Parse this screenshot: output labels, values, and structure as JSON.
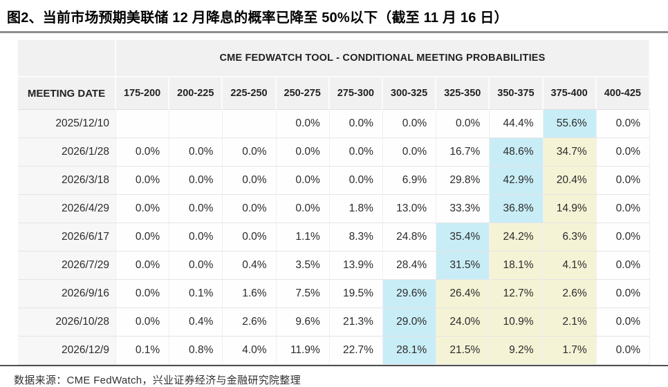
{
  "title": "图2、当前市场预期美联储 12 月降息的概率已降至 50%以下（截至 11 月 16 日）",
  "footer": "数据来源：CME FedWatch，兴业证券经济与金融研究院整理",
  "colors": {
    "highlight_cyan": "#c9edf6",
    "highlight_yellow": "#f5f3d6",
    "header_bg": "#f1f1f1",
    "date_cell_bg": "#f7f7f7"
  },
  "table": {
    "header": "CME FEDWATCH TOOL - CONDITIONAL MEETING PROBABILITIES",
    "date_column_header": "MEETING DATE",
    "rate_bins": [
      "175-200",
      "200-225",
      "225-250",
      "250-275",
      "275-300",
      "300-325",
      "325-350",
      "350-375",
      "375-400",
      "400-425"
    ],
    "rows": [
      {
        "date": "2025/12/10",
        "values": [
          "",
          "",
          "",
          "0.0%",
          "0.0%",
          "0.0%",
          "0.0%",
          "44.4%",
          "55.6%",
          "0.0%"
        ],
        "hl": [
          "",
          "",
          "",
          "",
          "",
          "",
          "",
          "",
          "c",
          ""
        ]
      },
      {
        "date": "2026/1/28",
        "values": [
          "0.0%",
          "0.0%",
          "0.0%",
          "0.0%",
          "0.0%",
          "0.0%",
          "16.7%",
          "48.6%",
          "34.7%",
          "0.0%"
        ],
        "hl": [
          "",
          "",
          "",
          "",
          "",
          "",
          "",
          "c",
          "y",
          ""
        ]
      },
      {
        "date": "2026/3/18",
        "values": [
          "0.0%",
          "0.0%",
          "0.0%",
          "0.0%",
          "0.0%",
          "6.9%",
          "29.8%",
          "42.9%",
          "20.4%",
          "0.0%"
        ],
        "hl": [
          "",
          "",
          "",
          "",
          "",
          "",
          "",
          "c",
          "y",
          ""
        ]
      },
      {
        "date": "2026/4/29",
        "values": [
          "0.0%",
          "0.0%",
          "0.0%",
          "0.0%",
          "1.8%",
          "13.0%",
          "33.3%",
          "36.8%",
          "14.9%",
          "0.0%"
        ],
        "hl": [
          "",
          "",
          "",
          "",
          "",
          "",
          "",
          "c",
          "y",
          ""
        ]
      },
      {
        "date": "2026/6/17",
        "values": [
          "0.0%",
          "0.0%",
          "0.0%",
          "1.1%",
          "8.3%",
          "24.8%",
          "35.4%",
          "24.2%",
          "6.3%",
          "0.0%"
        ],
        "hl": [
          "",
          "",
          "",
          "",
          "",
          "",
          "c",
          "y",
          "y",
          ""
        ]
      },
      {
        "date": "2026/7/29",
        "values": [
          "0.0%",
          "0.0%",
          "0.4%",
          "3.5%",
          "13.9%",
          "28.4%",
          "31.5%",
          "18.1%",
          "4.1%",
          "0.0%"
        ],
        "hl": [
          "",
          "",
          "",
          "",
          "",
          "",
          "c",
          "y",
          "y",
          ""
        ]
      },
      {
        "date": "2026/9/16",
        "values": [
          "0.0%",
          "0.1%",
          "1.6%",
          "7.5%",
          "19.5%",
          "29.6%",
          "26.4%",
          "12.7%",
          "2.6%",
          "0.0%"
        ],
        "hl": [
          "",
          "",
          "",
          "",
          "",
          "c",
          "y",
          "y",
          "y",
          ""
        ]
      },
      {
        "date": "2026/10/28",
        "values": [
          "0.0%",
          "0.4%",
          "2.6%",
          "9.6%",
          "21.3%",
          "29.0%",
          "24.0%",
          "10.9%",
          "2.1%",
          "0.0%"
        ],
        "hl": [
          "",
          "",
          "",
          "",
          "",
          "c",
          "y",
          "y",
          "y",
          ""
        ]
      },
      {
        "date": "2026/12/9",
        "values": [
          "0.1%",
          "0.8%",
          "4.0%",
          "11.9%",
          "22.7%",
          "28.1%",
          "21.5%",
          "9.2%",
          "1.7%",
          "0.0%"
        ],
        "hl": [
          "",
          "",
          "",
          "",
          "",
          "c",
          "y",
          "y",
          "y",
          ""
        ]
      }
    ]
  }
}
